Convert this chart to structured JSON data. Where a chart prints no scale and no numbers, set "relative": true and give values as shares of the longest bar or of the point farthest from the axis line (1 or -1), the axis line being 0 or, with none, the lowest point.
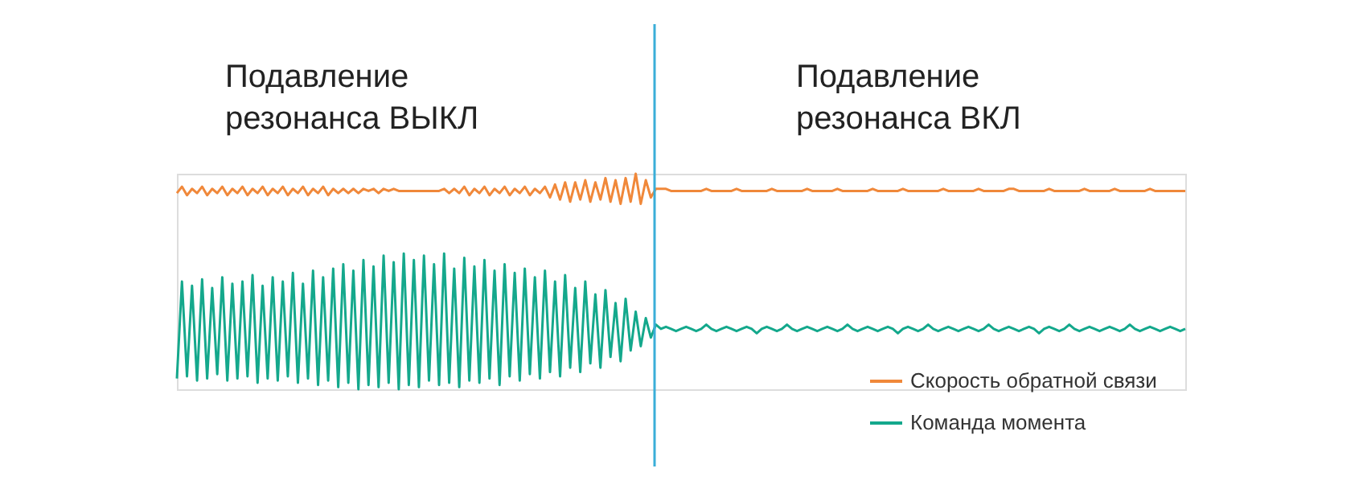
{
  "chart_data": {
    "type": "line",
    "relative": true,
    "tick_labels": false,
    "grid": false,
    "legend": "bottom right",
    "line_style": "solid",
    "annotations": [
      "Подавление\nрезонанса ВЫКЛ",
      "Подавление\nрезонанса ВКЛ"
    ],
    "categories": [
      null,
      null,
      null,
      null,
      null,
      null,
      null,
      null,
      null,
      null,
      null,
      null,
      null,
      null,
      null,
      null,
      null,
      null,
      null,
      null,
      null,
      null,
      null,
      null,
      null,
      null,
      null,
      null,
      null,
      null,
      null,
      null,
      null,
      null,
      null,
      null,
      null,
      null,
      null,
      null,
      null,
      null,
      null,
      null,
      null,
      null,
      null,
      null,
      null,
      null,
      null,
      null,
      null,
      null,
      null,
      null,
      null,
      null,
      null,
      null,
      null,
      null,
      null,
      null,
      null,
      null,
      null,
      null,
      null,
      null,
      null,
      null,
      null,
      null,
      null,
      null,
      null,
      null,
      null,
      null,
      null,
      null,
      null,
      null,
      null,
      null,
      null,
      null,
      null,
      null,
      null,
      null,
      null,
      null,
      null,
      null,
      null,
      null,
      null,
      null,
      null,
      null,
      null,
      null,
      null,
      null,
      null,
      null,
      null,
      null,
      null,
      null,
      null,
      null,
      null,
      null,
      null,
      null,
      null,
      null,
      null,
      null,
      null,
      null,
      null,
      null,
      null,
      null,
      null,
      null,
      null,
      null,
      null,
      null,
      null,
      null,
      null,
      null,
      null,
      null,
      null,
      null,
      null,
      null,
      null,
      null,
      null,
      null,
      null,
      null,
      null,
      null,
      null,
      null,
      null,
      null,
      null,
      null,
      null,
      null,
      null,
      null,
      null,
      null,
      null,
      null,
      null,
      null,
      null,
      null,
      null,
      null,
      null,
      null,
      null,
      null,
      null,
      null,
      null,
      null,
      null,
      null,
      null,
      null,
      null,
      null,
      null,
      null,
      null,
      null,
      null,
      null,
      null,
      null,
      null,
      null,
      null,
      null,
      null,
      null,
      null
    ],
    "series": [
      {
        "name": "Скорость обратной связи",
        "color": "#f0883a",
        "values": [
          0.91,
          0.94,
          0.9,
          0.93,
          0.91,
          0.94,
          0.9,
          0.93,
          0.91,
          0.94,
          0.9,
          0.93,
          0.91,
          0.94,
          0.9,
          0.93,
          0.91,
          0.94,
          0.9,
          0.93,
          0.91,
          0.94,
          0.9,
          0.93,
          0.91,
          0.94,
          0.9,
          0.93,
          0.91,
          0.94,
          0.9,
          0.93,
          0.91,
          0.93,
          0.91,
          0.93,
          0.91,
          0.93,
          0.92,
          0.93,
          0.91,
          0.93,
          0.92,
          0.93,
          0.92,
          0.92,
          0.92,
          0.92,
          0.92,
          0.92,
          0.92,
          0.92,
          0.92,
          0.93,
          0.91,
          0.93,
          0.91,
          0.94,
          0.9,
          0.93,
          0.91,
          0.94,
          0.9,
          0.93,
          0.91,
          0.94,
          0.9,
          0.93,
          0.91,
          0.94,
          0.9,
          0.93,
          0.91,
          0.94,
          0.89,
          0.95,
          0.88,
          0.96,
          0.87,
          0.96,
          0.88,
          0.97,
          0.87,
          0.96,
          0.88,
          0.98,
          0.87,
          0.97,
          0.86,
          0.98,
          0.87,
          1.0,
          0.86,
          0.97,
          0.89,
          0.93,
          0.93,
          0.93,
          0.92,
          0.92,
          0.92,
          0.92,
          0.92,
          0.92,
          0.92,
          0.93,
          0.92,
          0.92,
          0.92,
          0.92,
          0.92,
          0.93,
          0.92,
          0.92,
          0.92,
          0.92,
          0.92,
          0.92,
          0.93,
          0.92,
          0.92,
          0.92,
          0.92,
          0.92,
          0.92,
          0.93,
          0.92,
          0.92,
          0.92,
          0.92,
          0.92,
          0.93,
          0.92,
          0.92,
          0.92,
          0.92,
          0.92,
          0.92,
          0.93,
          0.92,
          0.92,
          0.92,
          0.92,
          0.92,
          0.93,
          0.92,
          0.92,
          0.92,
          0.92,
          0.92,
          0.92,
          0.92,
          0.93,
          0.92,
          0.92,
          0.92,
          0.92,
          0.92,
          0.92,
          0.93,
          0.92,
          0.92,
          0.92,
          0.92,
          0.92,
          0.93,
          0.93,
          0.92,
          0.92,
          0.92,
          0.92,
          0.92,
          0.92,
          0.93,
          0.92,
          0.92,
          0.92,
          0.92,
          0.92,
          0.92,
          0.93,
          0.92,
          0.92,
          0.92,
          0.92,
          0.92,
          0.93,
          0.92,
          0.92,
          0.92,
          0.92,
          0.92,
          0.92,
          0.93,
          0.92,
          0.92,
          0.92,
          0.92,
          0.92,
          0.92,
          0.92
        ]
      },
      {
        "name": "Команда момента",
        "color": "#14a88c",
        "values": [
          0.05,
          0.5,
          0.06,
          0.48,
          0.04,
          0.51,
          0.05,
          0.47,
          0.07,
          0.52,
          0.04,
          0.49,
          0.05,
          0.5,
          0.06,
          0.53,
          0.03,
          0.48,
          0.05,
          0.52,
          0.04,
          0.5,
          0.06,
          0.54,
          0.03,
          0.49,
          0.05,
          0.55,
          0.02,
          0.52,
          0.04,
          0.56,
          0.01,
          0.58,
          0.03,
          0.55,
          0.0,
          0.6,
          0.02,
          0.57,
          0.01,
          0.62,
          0.03,
          0.59,
          0.0,
          0.63,
          0.02,
          0.6,
          0.01,
          0.62,
          0.04,
          0.58,
          0.02,
          0.63,
          0.03,
          0.56,
          0.01,
          0.61,
          0.04,
          0.57,
          0.03,
          0.6,
          0.05,
          0.55,
          0.02,
          0.58,
          0.06,
          0.54,
          0.04,
          0.56,
          0.07,
          0.52,
          0.05,
          0.55,
          0.08,
          0.5,
          0.06,
          0.53,
          0.1,
          0.47,
          0.08,
          0.5,
          0.12,
          0.44,
          0.1,
          0.46,
          0.15,
          0.4,
          0.13,
          0.42,
          0.18,
          0.36,
          0.2,
          0.33,
          0.24,
          0.3,
          0.28,
          0.29,
          0.28,
          0.27,
          0.28,
          0.29,
          0.28,
          0.27,
          0.28,
          0.3,
          0.28,
          0.27,
          0.28,
          0.29,
          0.28,
          0.27,
          0.28,
          0.29,
          0.28,
          0.26,
          0.28,
          0.29,
          0.28,
          0.27,
          0.28,
          0.3,
          0.28,
          0.27,
          0.28,
          0.29,
          0.28,
          0.27,
          0.28,
          0.29,
          0.28,
          0.27,
          0.28,
          0.3,
          0.28,
          0.27,
          0.28,
          0.29,
          0.28,
          0.27,
          0.28,
          0.29,
          0.28,
          0.26,
          0.28,
          0.29,
          0.28,
          0.27,
          0.28,
          0.3,
          0.28,
          0.27,
          0.28,
          0.29,
          0.28,
          0.27,
          0.28,
          0.29,
          0.28,
          0.27,
          0.28,
          0.3,
          0.28,
          0.27,
          0.28,
          0.29,
          0.28,
          0.27,
          0.28,
          0.29,
          0.28,
          0.26,
          0.28,
          0.29,
          0.28,
          0.27,
          0.28,
          0.3,
          0.28,
          0.27,
          0.28,
          0.29,
          0.28,
          0.27,
          0.28,
          0.29,
          0.28,
          0.27,
          0.28,
          0.3,
          0.28,
          0.27,
          0.28,
          0.29,
          0.28,
          0.27,
          0.28,
          0.29,
          0.28,
          0.27,
          0.28
        ]
      }
    ]
  }
}
